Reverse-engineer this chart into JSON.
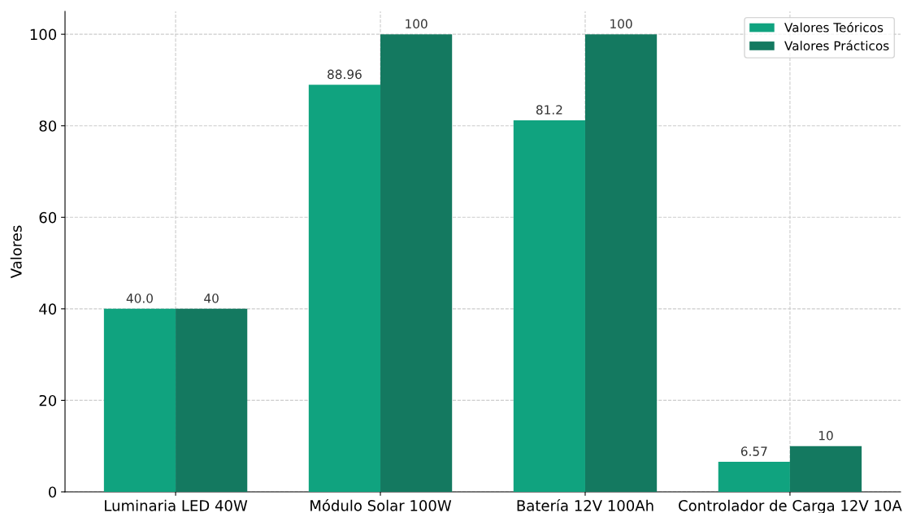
{
  "chart_data": {
    "type": "bar",
    "ylabel": "Valores",
    "categories": [
      "Luminaria LED 40W",
      "Módulo Solar 100W",
      "Batería 12V 100Ah",
      "Controlador de Carga 12V 10A"
    ],
    "series": [
      {
        "name": "Valores Teóricos",
        "color": "#10a37f",
        "values": [
          40.0,
          88.96,
          81.2,
          6.57
        ],
        "value_labels": [
          "40.0",
          "88.96",
          "81.2",
          "6.57"
        ]
      },
      {
        "name": "Valores Prácticos",
        "color": "#147960",
        "values": [
          40,
          100,
          100,
          10
        ],
        "value_labels": [
          "40",
          "100",
          "100",
          "10"
        ]
      }
    ],
    "ylim": [
      0,
      105
    ],
    "yticks": [
      0,
      20,
      40,
      60,
      80,
      100
    ],
    "grid": true,
    "legend": "top right"
  }
}
